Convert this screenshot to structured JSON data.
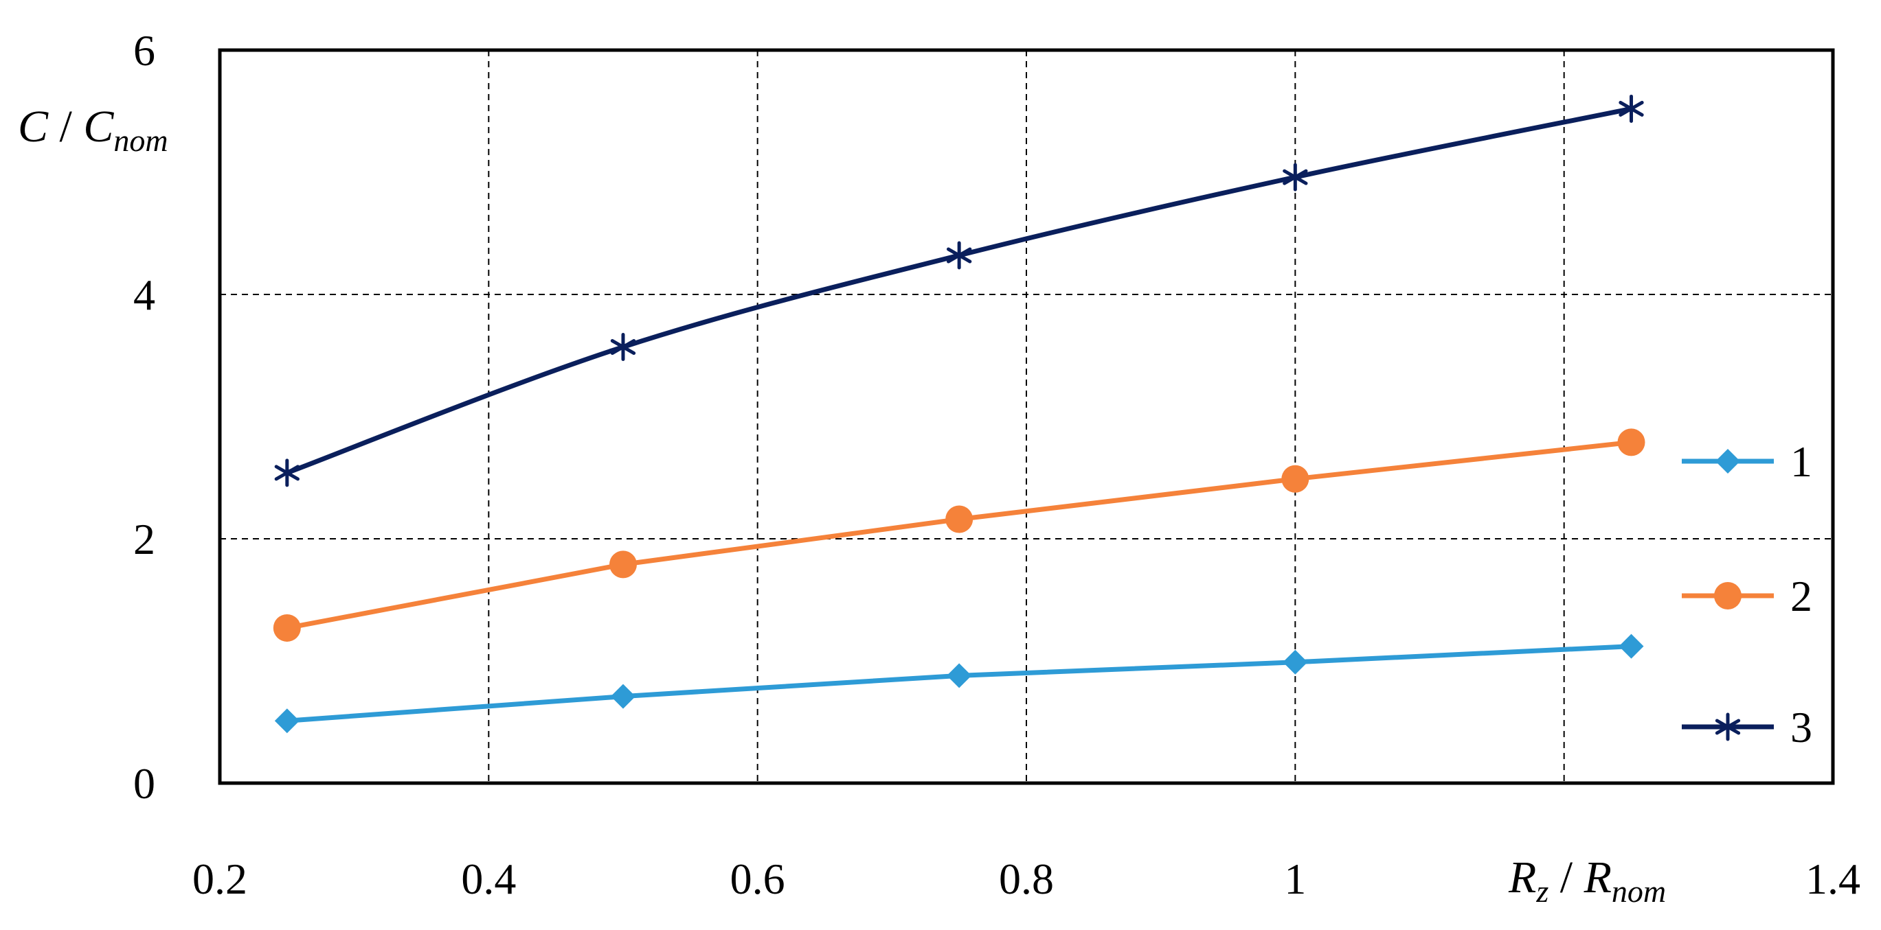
{
  "chart_data": {
    "type": "line",
    "xlabel": "R",
    "xlabel_sub": "z",
    "xlabel_sep": " / ",
    "xlabel_den": "R",
    "xlabel_den_sub": "nom",
    "ylabel": "C",
    "ylabel_sep": " / ",
    "ylabel_den": "C",
    "ylabel_den_sub": "nom",
    "xlim": [
      0.2,
      1.4
    ],
    "ylim": [
      0,
      6
    ],
    "xticks": [
      0.2,
      0.4,
      0.6,
      0.8,
      1,
      1.2,
      1.4
    ],
    "xtick_labels": [
      "0.2",
      "0.4",
      "0.6",
      "0.8",
      "1",
      "",
      "1.4"
    ],
    "yticks": [
      0,
      2,
      4,
      6
    ],
    "ytick_labels": [
      "0",
      "2",
      "4",
      "6"
    ],
    "grid": true,
    "legend_position": "right",
    "series": [
      {
        "name": "1",
        "color": "#2E9BD6",
        "marker": "diamond",
        "smooth": false,
        "x": [
          0.25,
          0.5,
          0.75,
          1.0,
          1.25
        ],
        "y": [
          0.51,
          0.71,
          0.88,
          0.99,
          1.12
        ]
      },
      {
        "name": "2",
        "color": "#F5823A",
        "marker": "circle",
        "smooth": false,
        "x": [
          0.25,
          0.5,
          0.75,
          1.0,
          1.25
        ],
        "y": [
          1.27,
          1.79,
          2.16,
          2.49,
          2.79
        ]
      },
      {
        "name": "3",
        "color": "#0A1F5C",
        "marker": "asterisk",
        "smooth": true,
        "x": [
          0.25,
          0.5,
          0.75,
          1.0,
          1.25
        ],
        "y": [
          2.54,
          3.57,
          4.32,
          4.96,
          5.52
        ]
      }
    ]
  }
}
